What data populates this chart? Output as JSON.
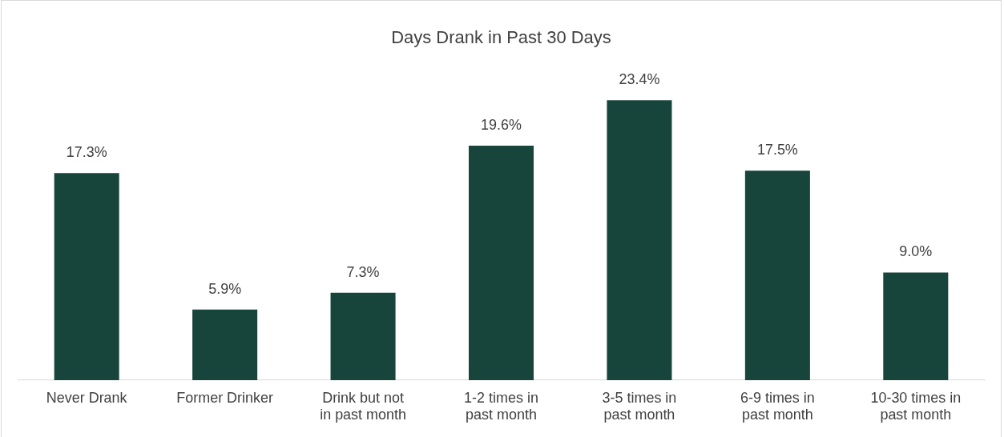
{
  "chart_data": {
    "type": "bar",
    "title": "Days Drank in Past 30 Days",
    "categories": [
      "Never Drank",
      "Former Drinker",
      "Drink but not in past month",
      "1-2 times in past month",
      "3-5 times in past month",
      "6-9 times in past month",
      "10-30 times in past month"
    ],
    "values": [
      17.3,
      5.9,
      7.3,
      19.6,
      23.4,
      17.5,
      9.0
    ],
    "value_labels": [
      "17.3%",
      "5.9%",
      "7.3%",
      "19.6%",
      "23.4%",
      "17.5%",
      "9.0%"
    ],
    "color": "#18453b",
    "grid": false,
    "legend": false
  }
}
